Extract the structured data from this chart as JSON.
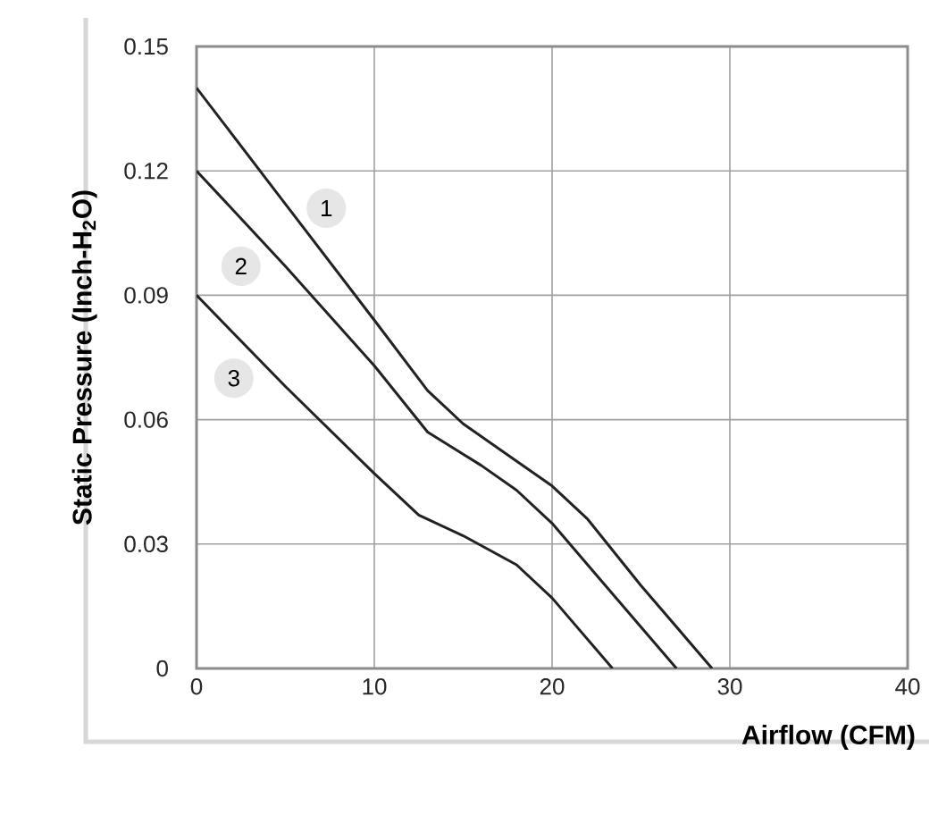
{
  "chart_data": {
    "type": "line",
    "xlabel": "Airflow (CFM)",
    "ylabel": "Static Pressure (Inch-H$_{2}$O)",
    "xlim": [
      0,
      40
    ],
    "ylim": [
      0,
      0.15
    ],
    "xticks": [
      0,
      10,
      20,
      30,
      40
    ],
    "yticks": [
      0,
      0.03,
      0.06,
      0.09,
      0.12,
      0.15
    ],
    "grid": true,
    "marker": "none",
    "line_style": "solid",
    "series": [
      {
        "color": "#222222",
        "x": [
          0,
          5,
          10,
          13,
          15,
          18,
          20,
          22,
          25,
          29
        ],
        "values": [
          0.14,
          0.112,
          0.084,
          0.067,
          0.059,
          0.05,
          0.044,
          0.036,
          0.02,
          0
        ]
      },
      {
        "color": "#222222",
        "x": [
          0,
          5,
          10,
          13,
          16,
          18,
          20,
          23,
          27
        ],
        "values": [
          0.12,
          0.097,
          0.073,
          0.057,
          0.049,
          0.043,
          0.035,
          0.02,
          0
        ]
      },
      {
        "color": "#222222",
        "x": [
          0,
          5,
          10,
          12.5,
          15,
          18,
          20,
          23.4
        ],
        "values": [
          0.09,
          0.068,
          0.047,
          0.037,
          0.032,
          0.025,
          0.017,
          0
        ]
      }
    ],
    "annotations": [
      {
        "text": "1",
        "x": 7.3,
        "y": 0.111
      },
      {
        "text": "2",
        "x": 2.5,
        "y": 0.097
      },
      {
        "text": "3",
        "x": 2.1,
        "y": 0.07
      }
    ]
  }
}
